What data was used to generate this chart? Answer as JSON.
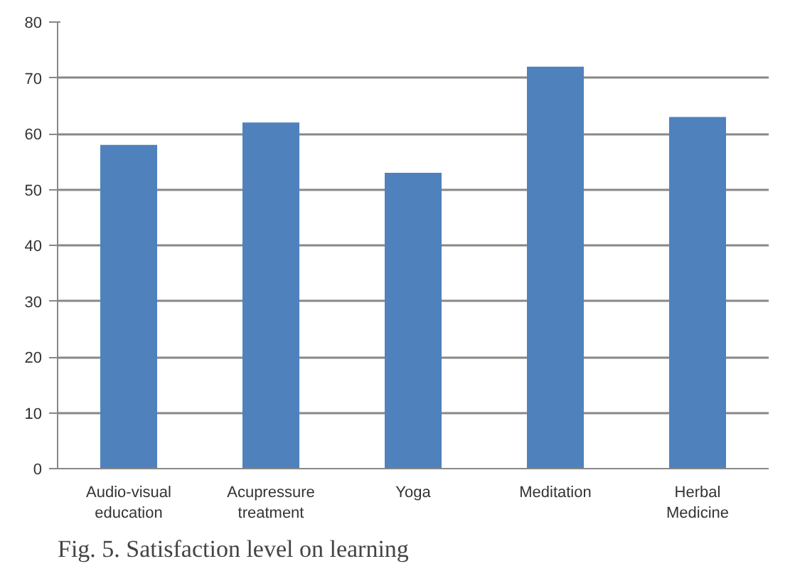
{
  "chart_data": {
    "type": "bar",
    "categories": [
      "Audio-visual education",
      "Acupressure treatment",
      "Yoga",
      "Meditation",
      "Herbal Medicine"
    ],
    "values": [
      58,
      62,
      53,
      72,
      63
    ],
    "color": "#4f81bd",
    "ylim": [
      0,
      80
    ],
    "yticks": [
      0,
      10,
      20,
      30,
      40,
      50,
      60,
      70,
      80
    ],
    "grid": "y",
    "annotations": [
      "Fig. 5. Satisfaction level on learning"
    ]
  }
}
